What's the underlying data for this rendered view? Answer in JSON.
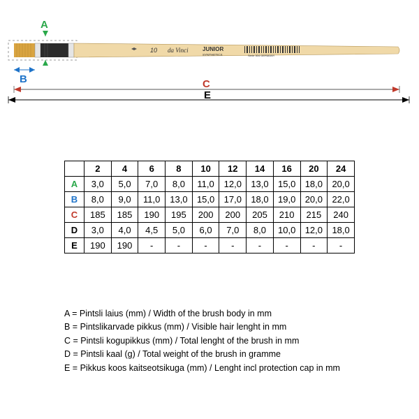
{
  "diagram": {
    "labels": {
      "A": "A",
      "B": "B",
      "C": "C",
      "E": "E"
    },
    "colors": {
      "A": "#2aa84a",
      "B": "#1e73c9",
      "C": "#c0392b",
      "E": "#000000",
      "dashed": "#999999",
      "arrow": "#555555"
    },
    "brush": {
      "bristle_color": "#d9a441",
      "ferrule_light": "#e5e5e5",
      "ferrule_dark": "#2b2b2b",
      "handle_color": "#f0d9a8",
      "handle_stroke": "#b59657",
      "brand_text1": "da Vinci",
      "brand_text2": "JUNIOR",
      "brand_text3": "SYNTHETICS",
      "info_text": "Serie 304   GERMANY",
      "size_mark": "10"
    }
  },
  "table": {
    "columns": [
      "2",
      "4",
      "6",
      "8",
      "10",
      "12",
      "14",
      "16",
      "20",
      "24"
    ],
    "rows": [
      {
        "key": "A",
        "color": "#2aa84a",
        "values": [
          "3,0",
          "5,0",
          "7,0",
          "8,0",
          "11,0",
          "12,0",
          "13,0",
          "15,0",
          "18,0",
          "20,0"
        ]
      },
      {
        "key": "B",
        "color": "#1e73c9",
        "values": [
          "8,0",
          "9,0",
          "11,0",
          "13,0",
          "15,0",
          "17,0",
          "18,0",
          "19,0",
          "20,0",
          "22,0"
        ]
      },
      {
        "key": "C",
        "color": "#c0392b",
        "values": [
          "185",
          "185",
          "190",
          "195",
          "200",
          "200",
          "205",
          "210",
          "215",
          "240"
        ]
      },
      {
        "key": "D",
        "color": "#000000",
        "values": [
          "3,0",
          "4,0",
          "4,5",
          "5,0",
          "6,0",
          "7,0",
          "8,0",
          "10,0",
          "12,0",
          "18,0"
        ]
      },
      {
        "key": "E",
        "color": "#000000",
        "values": [
          "190",
          "190",
          "-",
          "-",
          "-",
          "-",
          "-",
          "-",
          "-",
          "-"
        ]
      }
    ]
  },
  "legend": {
    "lines": [
      "A = Pintsli laius (mm) / Width of the brush body in mm",
      "B = Pintslikarvade pikkus (mm) / Visible hair lenght in mm",
      "C = Pintsli kogupikkus (mm) / Total lenght of the brush in mm",
      "D = Pintsli kaal (g) / Total weight of the brush in gramme",
      "E = Pikkus koos kaitseotsikuga (mm) / Lenght incl protection cap in mm"
    ]
  }
}
